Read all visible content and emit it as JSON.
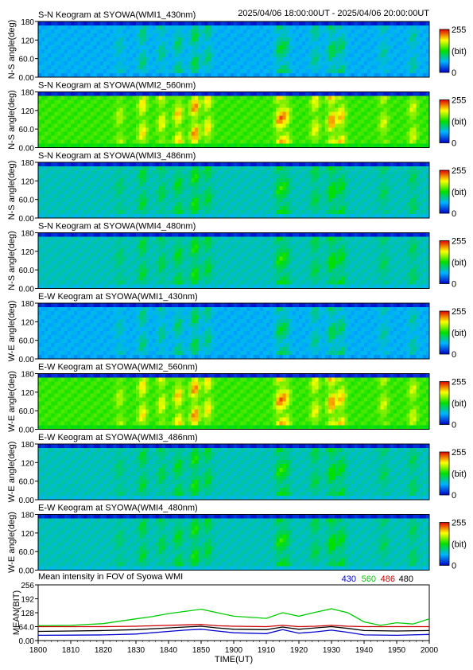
{
  "header": {
    "time_range": "2025/04/06 18:00:00UT - 2025/04/06 20:00:00UT"
  },
  "chart_data": [
    {
      "type": "heatmap",
      "title": "S-N Keogram at SYOWA(WMI1_430nm)",
      "ylabel": "N-S angle(deg)",
      "yticks": [
        "0.00",
        "60.0",
        "120",
        "180"
      ],
      "colorbar": {
        "max_label": "255",
        "unit_label": "(bit)",
        "min_label": "0"
      },
      "time_range_ut": [
        1800,
        2000
      ],
      "intensity": 0.25
    },
    {
      "type": "heatmap",
      "title": "S-N Keogram at SYOWA(WMI2_560nm)",
      "ylabel": "N-S angle(deg)",
      "yticks": [
        "0.00",
        "60.0",
        "120",
        "180"
      ],
      "colorbar": {
        "max_label": "255",
        "unit_label": "(bit)",
        "min_label": "0"
      },
      "time_range_ut": [
        1800,
        2000
      ],
      "intensity": 0.55
    },
    {
      "type": "heatmap",
      "title": "S-N Keogram at SYOWA(WMI3_486nm)",
      "ylabel": "N-S angle(deg)",
      "yticks": [
        "0.00",
        "60.0",
        "120",
        "180"
      ],
      "colorbar": {
        "max_label": "255",
        "unit_label": "(bit)",
        "min_label": "0"
      },
      "time_range_ut": [
        1800,
        2000
      ],
      "intensity": 0.32
    },
    {
      "type": "heatmap",
      "title": "S-N Keogram at SYOWA(WMI4_480nm)",
      "ylabel": "N-S angle(deg)",
      "yticks": [
        "0.00",
        "60.0",
        "120",
        "180"
      ],
      "colorbar": {
        "max_label": "255",
        "unit_label": "(bit)",
        "min_label": "0"
      },
      "time_range_ut": [
        1800,
        2000
      ],
      "intensity": 0.32
    },
    {
      "type": "heatmap",
      "title": "E-W Keogram at SYOWA(WMI1_430nm)",
      "ylabel": "W-E angle(deg)",
      "yticks": [
        "0.00",
        "60.0",
        "120",
        "180"
      ],
      "colorbar": {
        "max_label": "255",
        "unit_label": "(bit)",
        "min_label": "0"
      },
      "time_range_ut": [
        1800,
        2000
      ],
      "intensity": 0.25
    },
    {
      "type": "heatmap",
      "title": "E-W Keogram at SYOWA(WMI2_560nm)",
      "ylabel": "W-E angle(deg)",
      "yticks": [
        "0.00",
        "60.0",
        "120",
        "180"
      ],
      "colorbar": {
        "max_label": "255",
        "unit_label": "(bit)",
        "min_label": "0"
      },
      "time_range_ut": [
        1800,
        2000
      ],
      "intensity": 0.55
    },
    {
      "type": "heatmap",
      "title": "E-W Keogram at SYOWA(WMI3_486nm)",
      "ylabel": "W-E angle(deg)",
      "yticks": [
        "0.00",
        "60.0",
        "120",
        "180"
      ],
      "colorbar": {
        "max_label": "255",
        "unit_label": "(bit)",
        "min_label": "0"
      },
      "time_range_ut": [
        1800,
        2000
      ],
      "intensity": 0.32
    },
    {
      "type": "heatmap",
      "title": "E-W Keogram at SYOWA(WMI4_480nm)",
      "ylabel": "W-E angle(deg)",
      "yticks": [
        "0.00",
        "60.0",
        "120",
        "180"
      ],
      "colorbar": {
        "max_label": "255",
        "unit_label": "(bit)",
        "min_label": "0"
      },
      "time_range_ut": [
        1800,
        2000
      ],
      "intensity": 0.32
    },
    {
      "type": "line",
      "title": "Mean intensity in FOV of Syowa WMI",
      "xlabel": "TIME(UT)",
      "ylabel": "MEAN(BIT)",
      "x_ticks": [
        "1800",
        "1810",
        "1820",
        "1830",
        "1840",
        "1850",
        "1900",
        "1910",
        "1920",
        "1930",
        "1940",
        "1950",
        "2000"
      ],
      "y_ticks": [
        "0.00",
        "64.0",
        "128",
        "192",
        "256"
      ],
      "ylim": [
        0,
        256
      ],
      "series": [
        {
          "name": "430",
          "color": "#0000cc",
          "x": [
            1800,
            1810,
            1820,
            1830,
            1840,
            1845,
            1850,
            1855,
            1900,
            1910,
            1915,
            1920,
            1925,
            1930,
            1935,
            1940,
            1950,
            2000
          ],
          "y": [
            24,
            25,
            26,
            30,
            42,
            48,
            52,
            44,
            36,
            32,
            50,
            34,
            40,
            48,
            38,
            26,
            24,
            28
          ]
        },
        {
          "name": "560",
          "color": "#00cc00",
          "x": [
            1800,
            1810,
            1820,
            1830,
            1835,
            1840,
            1845,
            1850,
            1855,
            1900,
            1910,
            1915,
            1920,
            1925,
            1930,
            1935,
            1940,
            1945,
            1950,
            1955,
            2000
          ],
          "y": [
            68,
            70,
            78,
            100,
            110,
            124,
            134,
            144,
            128,
            112,
            102,
            128,
            112,
            130,
            146,
            128,
            86,
            70,
            82,
            76,
            100
          ]
        },
        {
          "name": "486",
          "color": "#cc0000",
          "x": [
            1800,
            1810,
            1820,
            1830,
            1840,
            1845,
            1850,
            1855,
            1900,
            1910,
            1915,
            1920,
            1925,
            1930,
            1935,
            1940,
            1950,
            2000
          ],
          "y": [
            64,
            64,
            64,
            66,
            70,
            72,
            74,
            68,
            66,
            64,
            70,
            64,
            66,
            70,
            66,
            64,
            64,
            64
          ]
        },
        {
          "name": "480",
          "color": "#000000",
          "x": [
            1800,
            1810,
            1820,
            1830,
            1840,
            1845,
            1850,
            1855,
            1900,
            1910,
            1915,
            1920,
            1925,
            1930,
            1935,
            1940,
            1950,
            2000
          ],
          "y": [
            42,
            44,
            46,
            50,
            58,
            62,
            66,
            58,
            52,
            50,
            62,
            52,
            58,
            64,
            56,
            46,
            44,
            46
          ]
        }
      ]
    }
  ]
}
